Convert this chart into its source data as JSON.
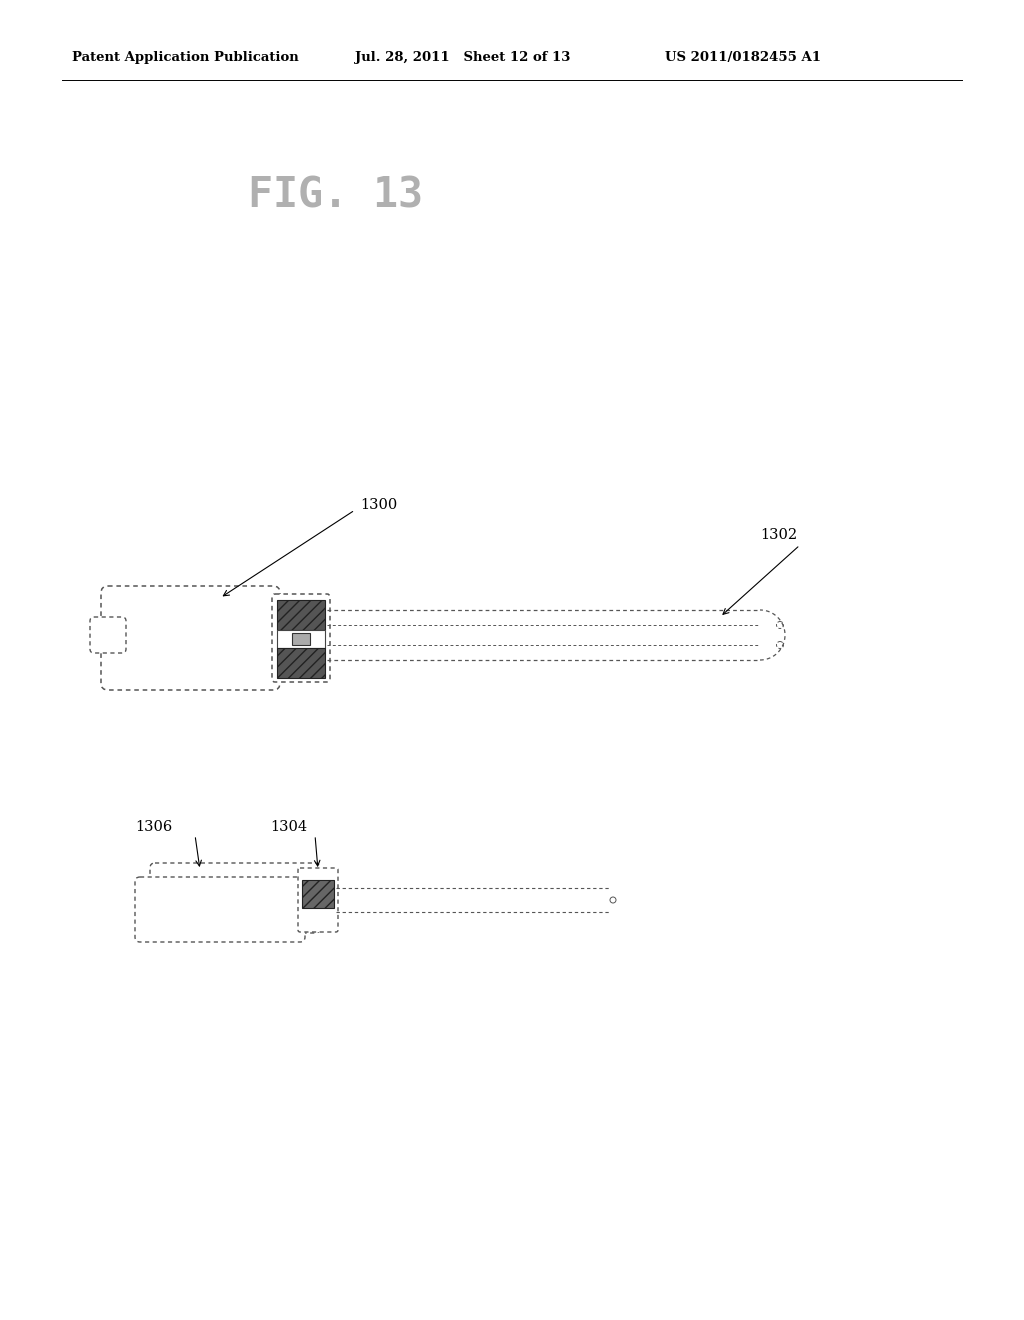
{
  "header_left": "Patent Application Publication",
  "header_mid": "Jul. 28, 2011   Sheet 12 of 13",
  "header_right": "US 2011/0182455 A1",
  "fig_title": "FIG. 13",
  "label_1300": "1300",
  "label_1302": "1302",
  "label_1304": "1304",
  "label_1306": "1306",
  "bg_color": "#ffffff",
  "line_color": "#000000"
}
